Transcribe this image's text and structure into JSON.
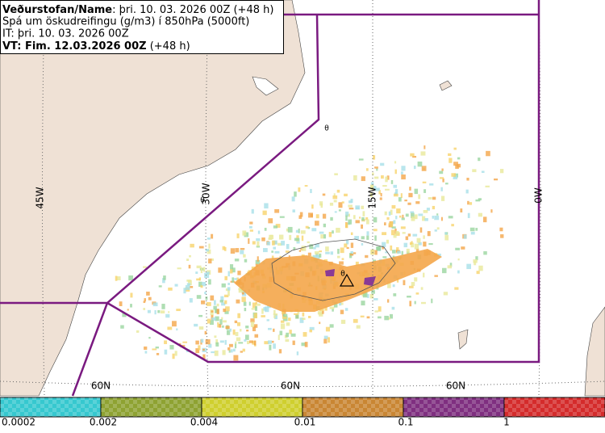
{
  "header": {
    "lines": [
      {
        "bold": "Veðurstofan/Name",
        "text": ": þri. 10. 03. 2026 00Z (+48 h)"
      },
      {
        "text": "Spá um öskudreifingu (g/m3) í 850hPa (5000ft)"
      },
      {
        "text": "IT: þri. 10. 03. 2026 00Z"
      },
      {
        "bold": "VT: Fim. 12.03.2026 00Z",
        "text": " (+48 h)"
      }
    ]
  },
  "map": {
    "longitude_labels": [
      "45W",
      "30W",
      "15W",
      "0W"
    ],
    "latitude_labels": [
      "60N",
      "60N",
      "60N"
    ],
    "markers": [
      "θ",
      "θ",
      "θ"
    ]
  },
  "legend": {
    "labels": [
      "0.0002",
      "0.002",
      "0.004",
      "0.01",
      "0.1",
      "1"
    ],
    "colors": [
      "#36c8cf",
      "#8ea232",
      "#cfcf2e",
      "#c98633",
      "#7f2f80",
      "#d42b2b"
    ]
  }
}
